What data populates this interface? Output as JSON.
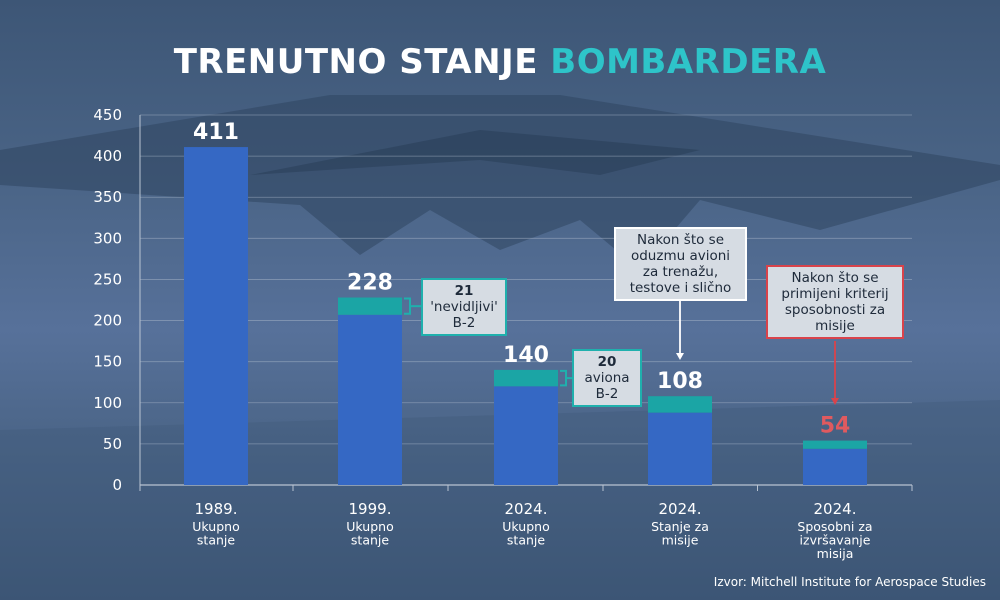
{
  "title": {
    "part1": "TRENUTNO STANJE",
    "part2": "BOMBARDERA"
  },
  "source": "Izvor: Mitchell Institute for Aerospace Studies",
  "colors": {
    "bar": "#3568c4",
    "top_segment": "#1ba5a5",
    "highlight_label": "#e05a5f",
    "title_accent": "#2ec4c9"
  },
  "chart_data": {
    "type": "bar",
    "stacked": true,
    "ylim": [
      0,
      450
    ],
    "yticks": [
      0,
      50,
      100,
      150,
      200,
      250,
      300,
      350,
      400,
      450
    ],
    "categories": [
      {
        "year": "1989.",
        "sub": [
          "Ukupno",
          "stanje"
        ]
      },
      {
        "year": "1999.",
        "sub": [
          "Ukupno",
          "stanje"
        ]
      },
      {
        "year": "2024.",
        "sub": [
          "Ukupno",
          "stanje"
        ]
      },
      {
        "year": "2024.",
        "sub": [
          "Stanje za",
          "misije"
        ]
      },
      {
        "year": "2024.",
        "sub": [
          "Sposobni za",
          "izvršavanje",
          "misija"
        ]
      }
    ],
    "totals": [
      411,
      228,
      140,
      108,
      54
    ],
    "top_segment": [
      0,
      21,
      20,
      20,
      10
    ],
    "value_labels": [
      "411",
      "228",
      "140",
      "108",
      "54"
    ],
    "highlight_index": 4,
    "annotations": [
      {
        "style": "teal",
        "num": "21",
        "lines": [
          "'nevidljivi'",
          "B-2"
        ]
      },
      {
        "style": "teal",
        "num": "20",
        "lines": [
          "aviona",
          "B-2"
        ]
      },
      {
        "style": "gray",
        "num": "",
        "lines": [
          "Nakon što se",
          "oduzmu avioni",
          "za trenažu,",
          "testove i slično"
        ]
      },
      {
        "style": "red",
        "num": "",
        "lines": [
          "Nakon što se",
          "primijeni kriterij",
          "sposobnosti za",
          "misije"
        ]
      }
    ]
  }
}
